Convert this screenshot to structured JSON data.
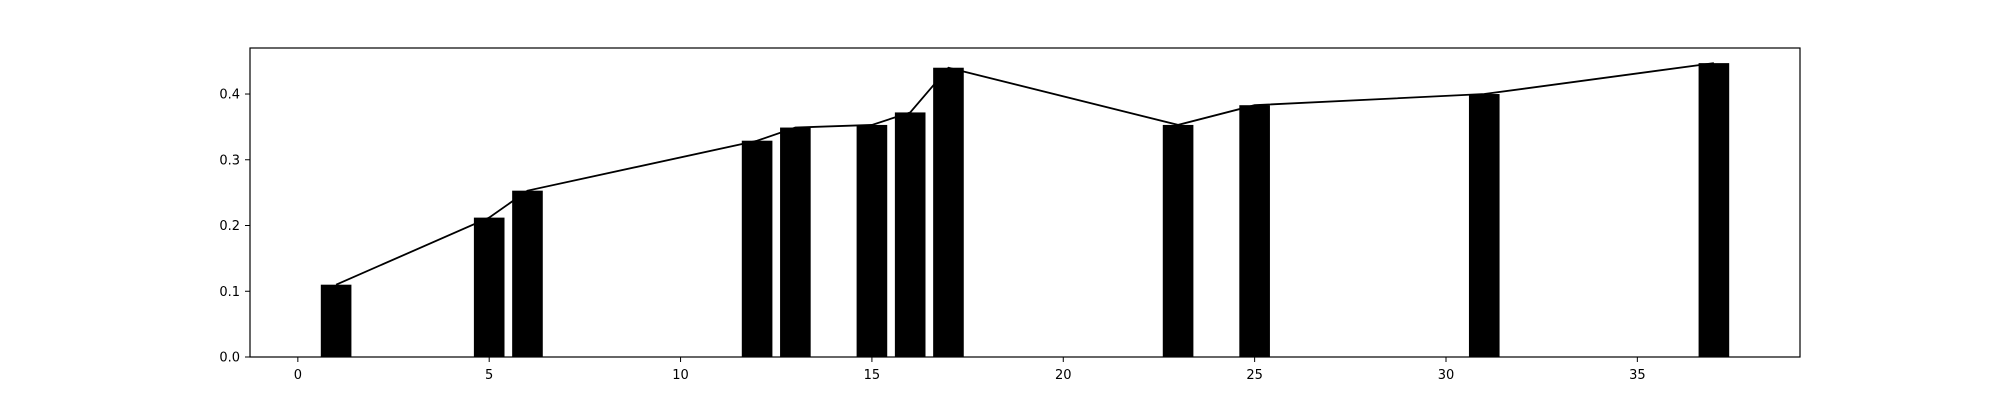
{
  "chart_data": {
    "type": "bar",
    "title": "",
    "xlabel": "",
    "ylabel": "",
    "xlim": [
      -1.25,
      39.25
    ],
    "ylim": [
      0,
      0.47
    ],
    "x_ticks": [
      0,
      5,
      10,
      15,
      20,
      25,
      30,
      35
    ],
    "y_ticks": [
      0.0,
      0.1,
      0.2,
      0.3,
      0.4
    ],
    "x_tick_labels": [
      "0",
      "5",
      "10",
      "15",
      "20",
      "25",
      "30",
      "35"
    ],
    "y_tick_labels": [
      "0.0",
      "0.1",
      "0.2",
      "0.3",
      "0.4"
    ],
    "grid": false,
    "legend": "none",
    "bar_color": "#000000",
    "line_color": "#000000",
    "bar_width": 0.8,
    "series": [
      {
        "type": "bar",
        "x": [
          1,
          5,
          6,
          12,
          13,
          15,
          16,
          17,
          23,
          25,
          31,
          37
        ],
        "values": [
          0.11,
          0.212,
          0.253,
          0.329,
          0.349,
          0.353,
          0.372,
          0.44,
          0.353,
          0.383,
          0.4,
          0.447
        ]
      },
      {
        "type": "line",
        "x": [
          1,
          5,
          6,
          12,
          13,
          15,
          16,
          17,
          23,
          25,
          31,
          37
        ],
        "values": [
          0.11,
          0.212,
          0.253,
          0.329,
          0.349,
          0.353,
          0.372,
          0.44,
          0.353,
          0.383,
          0.4,
          0.447
        ]
      }
    ]
  }
}
